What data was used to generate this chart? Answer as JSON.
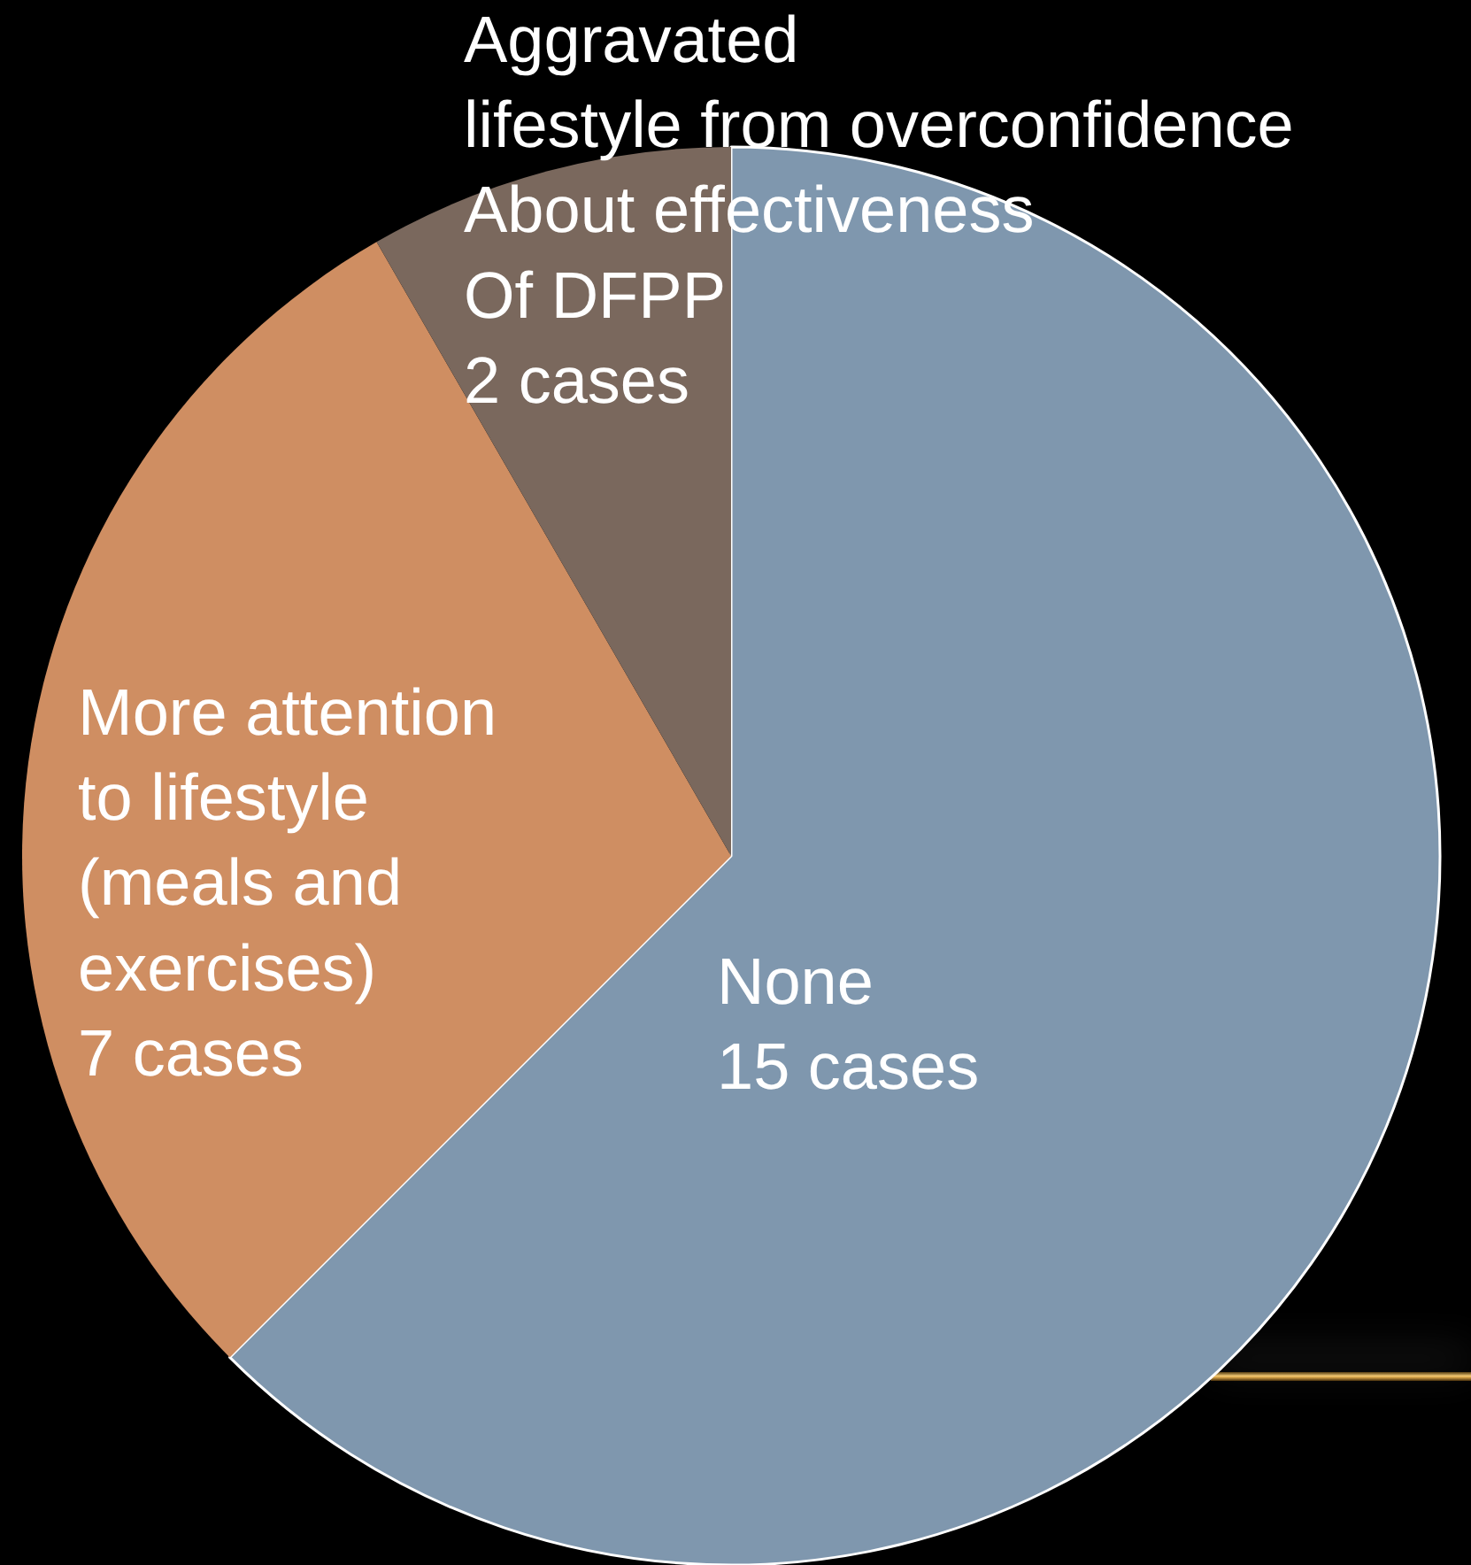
{
  "chart_data": {
    "type": "pie",
    "categories": [
      "None",
      "More attention\nto lifestyle\n(meals and\nexercises)",
      "Aggravated\nlifestyle from overconfidence\nAbout effectiveness\nOf DFPP"
    ],
    "values": [
      15,
      7,
      2
    ],
    "value_labels": [
      "15 cases",
      "7 cases",
      "2 cases"
    ],
    "colors": [
      "#7f97ae",
      "#cf8e62",
      "#7a685d"
    ]
  }
}
